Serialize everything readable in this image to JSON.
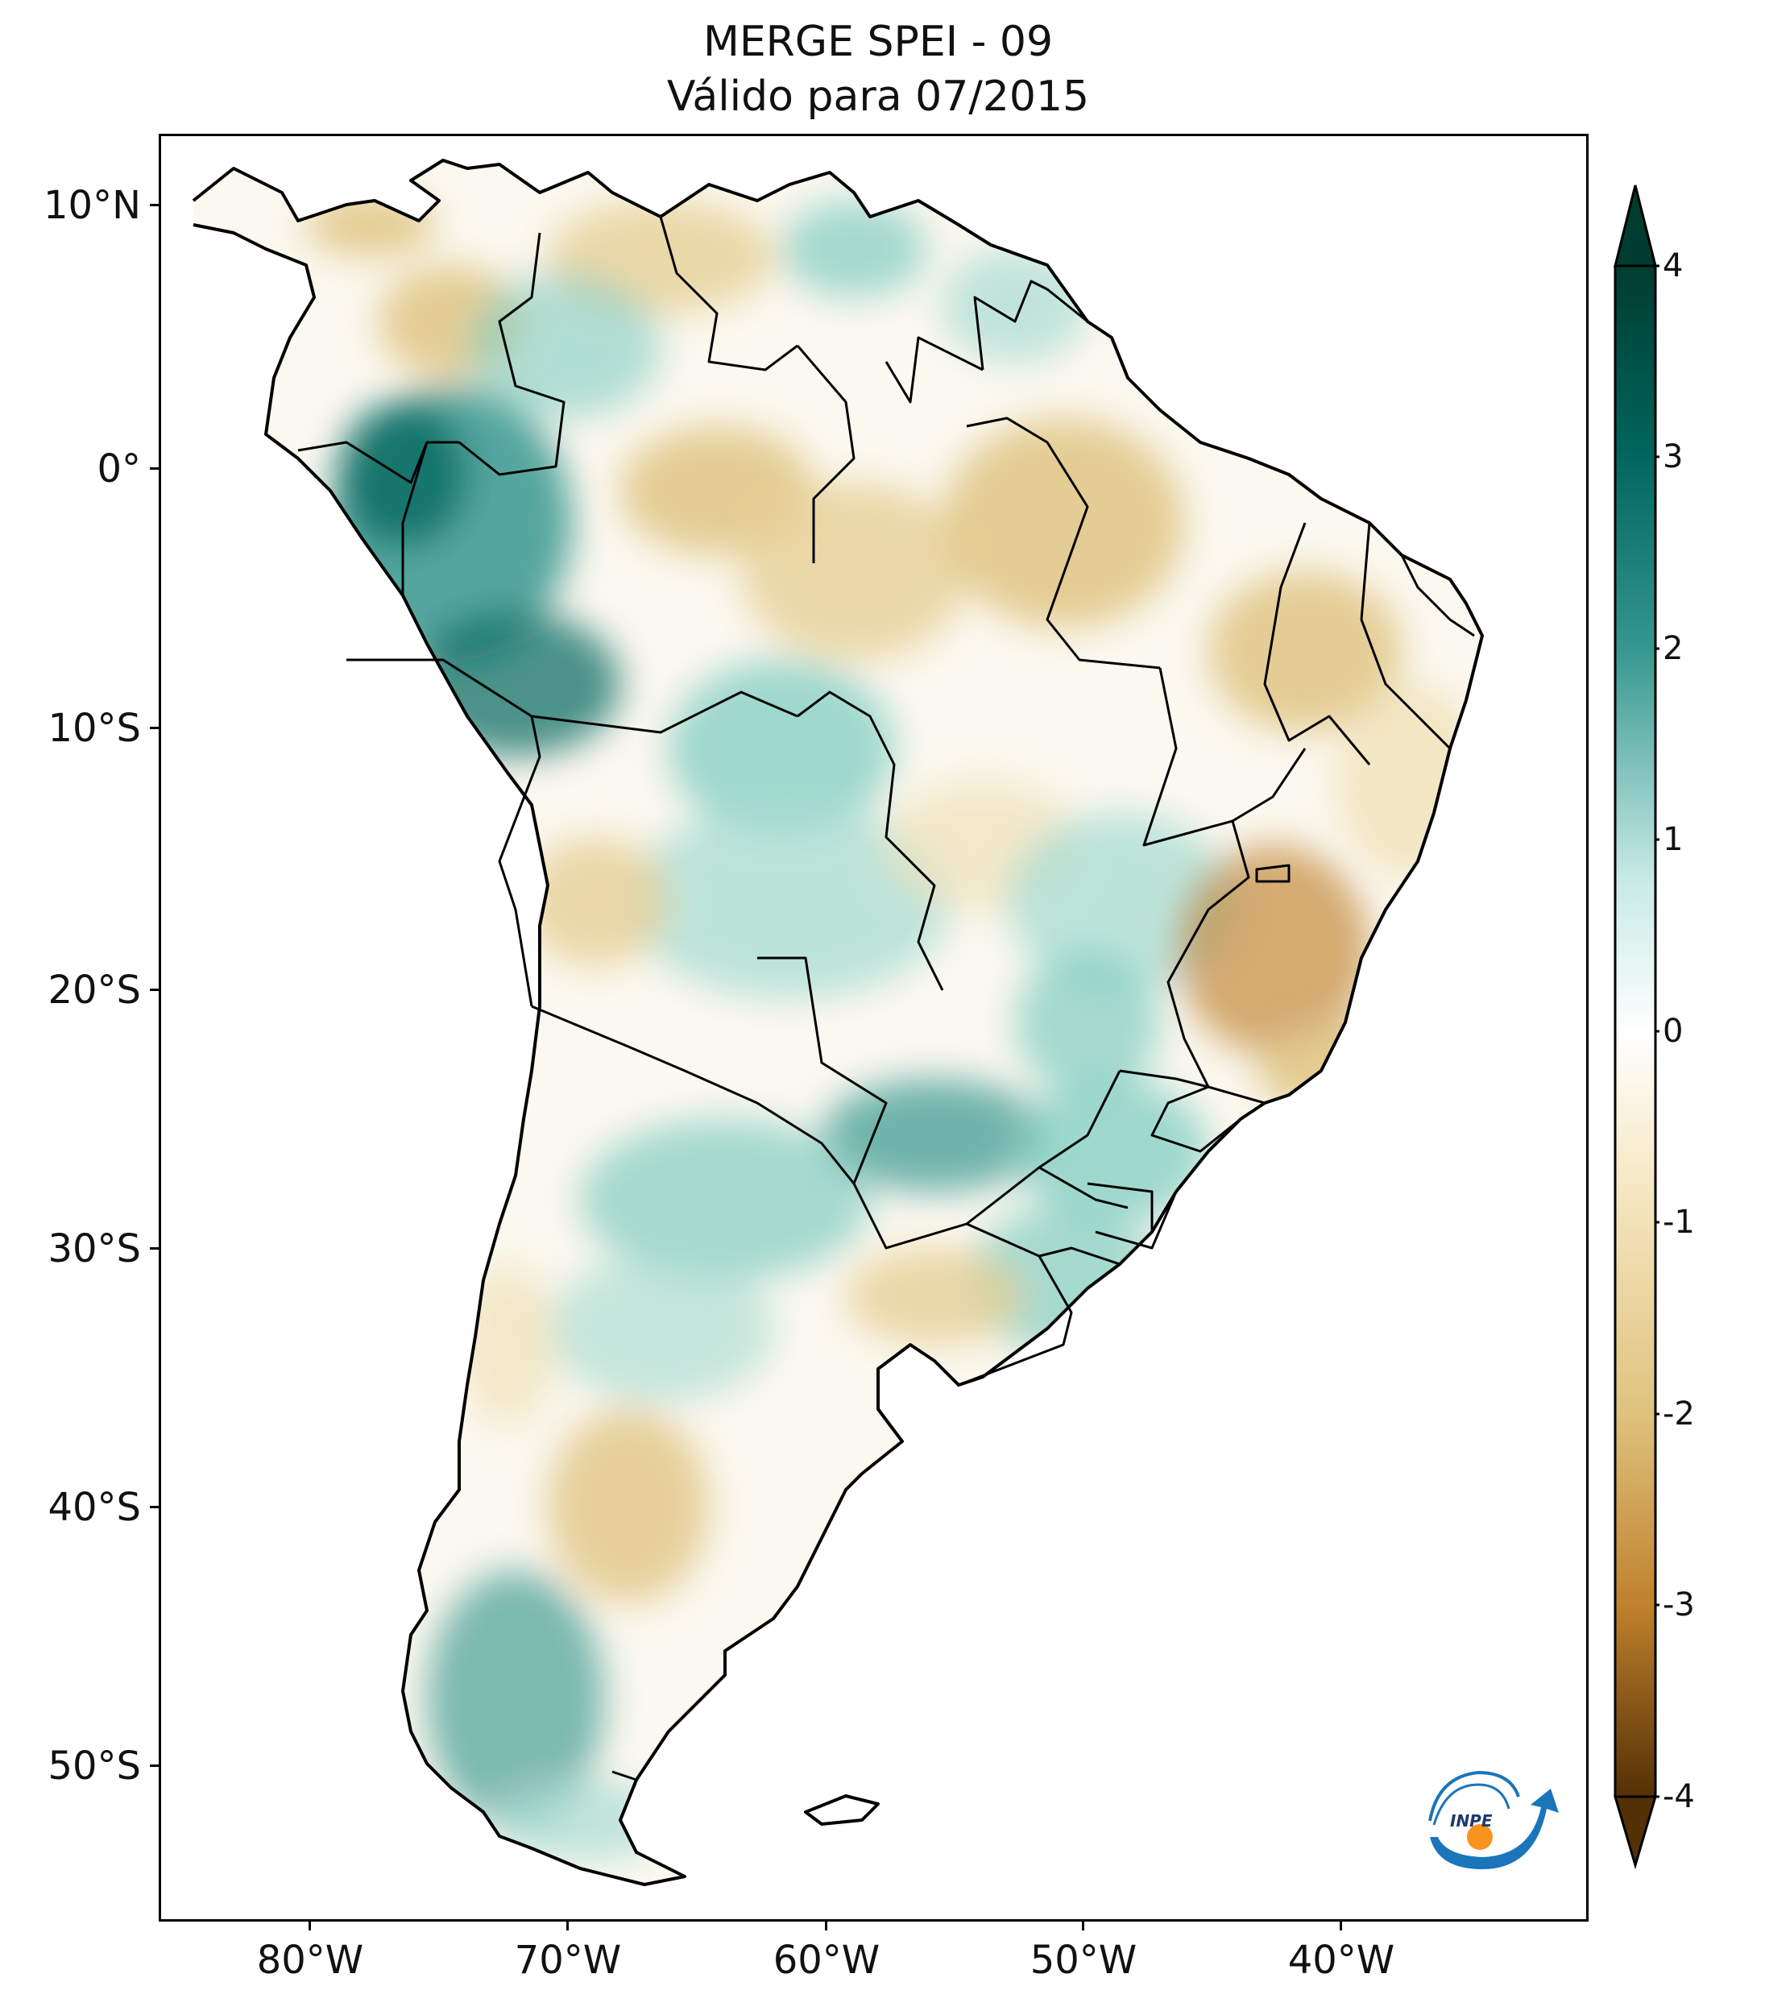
{
  "title": {
    "line1": "MERGE   SPEI - 09",
    "line2": "Válido para 07/2015"
  },
  "axes": {
    "lat_labels": [
      "10°N",
      "0°",
      "10°S",
      "20°S",
      "30°S",
      "40°S",
      "50°S"
    ],
    "lon_labels": [
      "80°W",
      "70°W",
      "60°W",
      "50°W",
      "40°W"
    ]
  },
  "colorbar": {
    "tick_labels": [
      "4",
      "3",
      "2",
      "1",
      "0",
      "-1",
      "-2",
      "-3",
      "-4"
    ],
    "range": [
      -4,
      4
    ],
    "extend": "both",
    "colormap": "BrBG",
    "colors": {
      "max": "#003c30",
      "high": "#01665e",
      "mid_high": "#35978f",
      "low_high": "#c7eae5",
      "zero": "#ffffff",
      "low_dry": "#f6e8c3",
      "mid_dry": "#dfc27d",
      "dry": "#bf812d",
      "min": "#543005"
    }
  },
  "logo": {
    "text": "INPE",
    "colors": {
      "arc": "#1a75bb",
      "dot": "#f7941d"
    }
  }
}
